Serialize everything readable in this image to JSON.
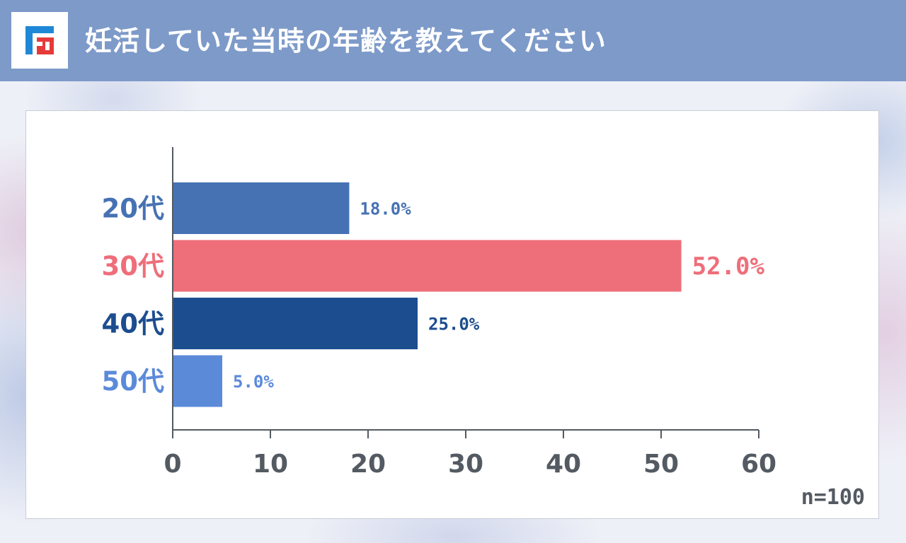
{
  "header": {
    "title": "妊活していた当時の年齢を教えてください",
    "logo_icon": "f-logo-icon",
    "background_color": "#7d9ac9"
  },
  "chart_data": {
    "type": "bar",
    "orientation": "horizontal",
    "categories": [
      "20代",
      "30代",
      "40代",
      "50代"
    ],
    "values": [
      18.0,
      52.0,
      25.0,
      5.0
    ],
    "value_labels": [
      "18.0%",
      "52.0%",
      "25.0%",
      "5.0%"
    ],
    "colors": [
      "#4672b4",
      "#ee6e7a",
      "#1c4d8f",
      "#5b8ad9"
    ],
    "xlim": [
      0,
      60
    ],
    "x_ticks": [
      "0",
      "10",
      "20",
      "30",
      "40",
      "50",
      "60"
    ],
    "grid": false,
    "highlight_category": "30代"
  },
  "footnote": "n=100"
}
